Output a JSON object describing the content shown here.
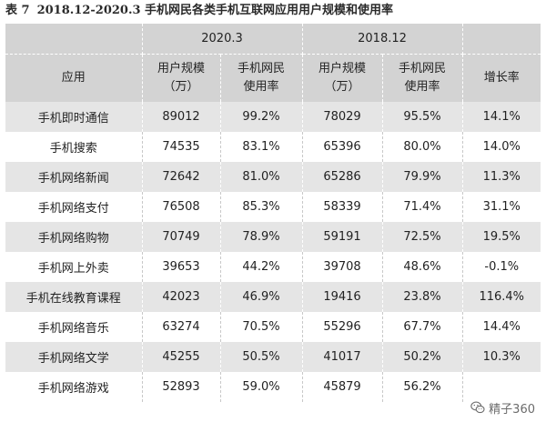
{
  "caption": {
    "label": "表 7",
    "title": "2018.12-2020.3 手机网民各类手机互联网应用用户规模和使用率"
  },
  "table": {
    "header_groups": [
      "2020.3",
      "2018.12"
    ],
    "columns": {
      "app": "应用",
      "users_line1": "用户规模",
      "users_line2": "（万）",
      "rate_line1": "手机网民",
      "rate_line2": "使用率",
      "growth": "增长率"
    },
    "rows": [
      {
        "app": "手机即时通信",
        "users_2020": "89012",
        "rate_2020": "99.2%",
        "users_2018": "78029",
        "rate_2018": "95.5%",
        "growth": "14.1%"
      },
      {
        "app": "手机搜索",
        "users_2020": "74535",
        "rate_2020": "83.1%",
        "users_2018": "65396",
        "rate_2018": "80.0%",
        "growth": "14.0%"
      },
      {
        "app": "手机网络新闻",
        "users_2020": "72642",
        "rate_2020": "81.0%",
        "users_2018": "65286",
        "rate_2018": "79.9%",
        "growth": "11.3%"
      },
      {
        "app": "手机网络支付",
        "users_2020": "76508",
        "rate_2020": "85.3%",
        "users_2018": "58339",
        "rate_2018": "71.4%",
        "growth": "31.1%"
      },
      {
        "app": "手机网络购物",
        "users_2020": "70749",
        "rate_2020": "78.9%",
        "users_2018": "59191",
        "rate_2018": "72.5%",
        "growth": "19.5%"
      },
      {
        "app": "手机网上外卖",
        "users_2020": "39653",
        "rate_2020": "44.2%",
        "users_2018": "39708",
        "rate_2018": "48.6%",
        "growth": "-0.1%"
      },
      {
        "app": "手机在线教育课程",
        "users_2020": "42023",
        "rate_2020": "46.9%",
        "users_2018": "19416",
        "rate_2018": "23.8%",
        "growth": "116.4%"
      },
      {
        "app": "手机网络音乐",
        "users_2020": "63274",
        "rate_2020": "70.5%",
        "users_2018": "55296",
        "rate_2018": "67.7%",
        "growth": "14.4%"
      },
      {
        "app": "手机网络文学",
        "users_2020": "45255",
        "rate_2020": "50.5%",
        "users_2018": "41017",
        "rate_2018": "50.2%",
        "growth": "10.3%"
      },
      {
        "app": "手机网络游戏",
        "users_2020": "52893",
        "rate_2020": "59.0%",
        "users_2018": "45879",
        "rate_2018": "56.2%",
        "growth": ""
      }
    ]
  },
  "watermark": {
    "icon": "wechat-icon",
    "text": "精子360"
  },
  "colors": {
    "header_bg": "#d3d3d3",
    "stripe_bg": "#e5e5e5",
    "text": "#222222"
  }
}
